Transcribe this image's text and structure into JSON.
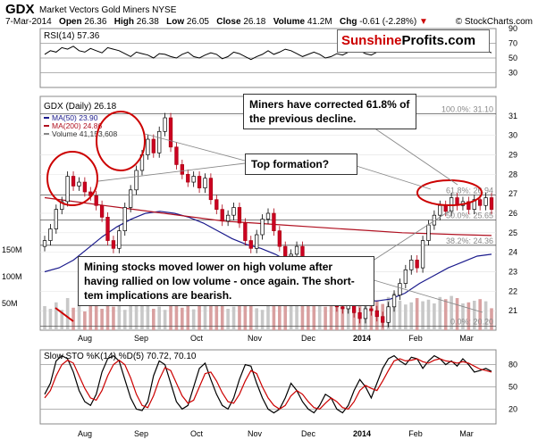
{
  "header": {
    "ticker": "GDX",
    "name": "Market Vectors Gold Miners NYSE",
    "date": "7-Mar-2014",
    "open_label": "Open",
    "open": "26.36",
    "high_label": "High",
    "high": "26.38",
    "low_label": "Low",
    "low": "26.05",
    "close_label": "Close",
    "close": "26.18",
    "volume_label": "Volume",
    "volume": "41.2M",
    "chg_label": "Chg",
    "chg": "-0.61 (-2.28%)",
    "credit": "© StockCharts.com"
  },
  "logo": {
    "part1": "Sunshine",
    "part2": "Profits.com"
  },
  "annotations": {
    "corrected": "Miners have corrected 61.8% of the previous decline.",
    "top_formation": "Top formation?",
    "volume_note": "Mining stocks moved lower on high volume after having rallied on low volume - once again. The short-tem implications are bearish."
  },
  "chart_data": [
    {
      "panel": "rsi",
      "type": "line",
      "label": "RSI(14) 57.36",
      "ylim": [
        10,
        90
      ],
      "yticks": [
        30,
        50,
        70,
        90
      ],
      "reference_lines": [
        30,
        50,
        70
      ],
      "values": [
        55,
        60,
        58,
        64,
        62,
        66,
        60,
        58,
        63,
        60,
        57,
        64,
        62,
        60,
        56,
        52,
        58,
        56,
        54,
        50,
        56,
        55,
        52,
        50,
        55,
        58,
        52,
        50,
        54,
        57,
        55,
        49,
        52,
        58,
        56,
        52,
        48,
        52,
        55,
        60,
        55,
        58,
        62,
        60,
        56,
        52,
        55,
        58,
        55,
        50,
        52,
        56,
        54,
        58,
        62,
        60,
        56,
        54,
        58,
        66,
        64,
        60,
        68,
        70,
        65,
        67,
        63,
        60,
        62,
        66,
        64,
        70,
        72,
        68,
        64,
        60,
        58,
        60,
        57
      ]
    },
    {
      "panel": "price",
      "type": "candlestick",
      "title": "GDX (Daily) 26.18",
      "legend": [
        {
          "name": "MA(50) 23.90",
          "color": "#1a1a8c"
        },
        {
          "name": "MA(200) 24.86",
          "color": "#b01020"
        },
        {
          "name": "Volume 41,153,608",
          "color": "#888888"
        }
      ],
      "ylim": [
        20,
        32
      ],
      "yticks": [
        21,
        22,
        23,
        24,
        25,
        26,
        27,
        28,
        29,
        30,
        31
      ],
      "x_labels": [
        "Aug",
        "Sep",
        "Oct",
        "Nov",
        "Dec",
        "2014",
        "Feb",
        "Mar"
      ],
      "volume_ticks": [
        "150M",
        "100M",
        "50M"
      ],
      "close": [
        24.6,
        25.2,
        26.2,
        26.6,
        27.9,
        27.4,
        27.6,
        27.1,
        26.9,
        26.4,
        25.8,
        24.6,
        24.2,
        25.1,
        26.3,
        27.2,
        28.2,
        29.0,
        29.8,
        29.1,
        30.2,
        30.9,
        29.4,
        28.5,
        28.0,
        27.6,
        27.9,
        27.3,
        27.8,
        26.7,
        26.2,
        25.6,
        25.9,
        26.3,
        25.5,
        24.6,
        24.2,
        24.9,
        25.7,
        26.0,
        25.1,
        24.3,
        23.8,
        23.9,
        24.3,
        23.5,
        22.8,
        22.4,
        22.6,
        22.0,
        21.6,
        21.2,
        21.1,
        21.4,
        20.9,
        20.6,
        21.1,
        21.0,
        20.7,
        20.4,
        21.2,
        21.8,
        22.4,
        23.1,
        23.6,
        23.2,
        24.6,
        25.4,
        25.9,
        26.4,
        26.1,
        26.8,
        26.4,
        26.6,
        26.2,
        26.7,
        26.4,
        26.8,
        26.2
      ],
      "ma50": [
        23.0,
        23.2,
        23.6,
        24.2,
        24.8,
        25.3,
        25.7,
        26.0,
        26.1,
        26.0,
        25.8,
        25.5,
        25.1,
        24.7,
        24.4,
        24.2,
        23.9,
        23.5,
        23.1,
        22.7,
        22.3,
        21.9,
        21.6,
        21.5,
        21.6,
        21.9,
        22.4,
        22.8,
        23.2,
        23.5,
        23.8,
        23.9
      ],
      "ma200": [
        26.8,
        26.6,
        26.4,
        26.2,
        26.0,
        25.8,
        25.6,
        25.5,
        25.4,
        25.3,
        25.2,
        25.1,
        25.0,
        24.95,
        24.9,
        24.86
      ],
      "fibonacci": [
        {
          "label": "100.0%: 31.10",
          "value": 31.1
        },
        {
          "label": "61.8%: 26.94",
          "value": 26.94
        },
        {
          "label": "50.0%: 25.65",
          "value": 25.65
        },
        {
          "label": "38.2%: 24.36",
          "value": 24.36
        },
        {
          "label": "0.0%: 20.20",
          "value": 20.2
        }
      ],
      "volume": [
        45,
        40,
        52,
        38,
        60,
        42,
        48,
        35,
        55,
        62,
        40,
        58,
        44,
        50,
        38,
        46,
        52,
        66,
        48,
        40,
        44,
        38,
        50,
        56,
        42,
        47,
        39,
        53,
        48,
        45,
        61,
        52,
        40,
        44,
        57,
        63,
        49,
        41,
        38,
        46,
        52,
        48,
        58,
        50,
        45,
        62,
        55,
        60,
        47,
        44,
        58,
        65,
        52,
        40,
        46,
        63,
        50,
        48,
        56,
        49,
        62,
        70,
        55,
        48,
        52,
        60,
        54,
        57,
        50,
        62,
        58,
        64,
        60,
        50,
        52,
        55,
        58,
        54,
        41
      ]
    },
    {
      "panel": "stochastic",
      "type": "line",
      "label": "Slow STO %K(14) %D(5) 70.72, 70.10",
      "ylim": [
        0,
        100
      ],
      "yticks": [
        20,
        50,
        80
      ],
      "reference_lines": [
        20,
        50,
        80
      ],
      "series": [
        {
          "name": "%K(14)",
          "color": "#000000",
          "values": [
            40,
            55,
            85,
            92,
            88,
            70,
            45,
            30,
            25,
            40,
            70,
            88,
            92,
            85,
            60,
            35,
            20,
            18,
            30,
            65,
            85,
            80,
            55,
            30,
            20,
            25,
            50,
            75,
            82,
            60,
            40,
            25,
            20,
            35,
            60,
            80,
            78,
            55,
            35,
            20,
            15,
            20,
            35,
            55,
            45,
            30,
            20,
            15,
            25,
            40,
            35,
            20,
            15,
            25,
            45,
            60,
            50,
            35,
            55,
            75,
            88,
            92,
            85,
            80,
            90,
            88,
            75,
            85,
            92,
            88,
            80,
            85,
            78,
            88,
            80,
            70,
            72,
            75,
            71
          ]
        },
        {
          "name": "%D(5)",
          "color": "#cc0000",
          "values": [
            35,
            45,
            65,
            80,
            86,
            82,
            65,
            48,
            35,
            32,
            45,
            65,
            80,
            86,
            80,
            62,
            40,
            25,
            22,
            38,
            60,
            76,
            72,
            55,
            38,
            28,
            32,
            50,
            68,
            70,
            58,
            42,
            30,
            28,
            40,
            58,
            72,
            68,
            50,
            35,
            25,
            20,
            25,
            38,
            45,
            40,
            30,
            22,
            20,
            28,
            35,
            30,
            22,
            20,
            30,
            45,
            52,
            48,
            45,
            58,
            72,
            85,
            88,
            85,
            86,
            88,
            84,
            82,
            86,
            88,
            85,
            84,
            82,
            84,
            82,
            78,
            74,
            72,
            70
          ]
        }
      ]
    }
  ]
}
